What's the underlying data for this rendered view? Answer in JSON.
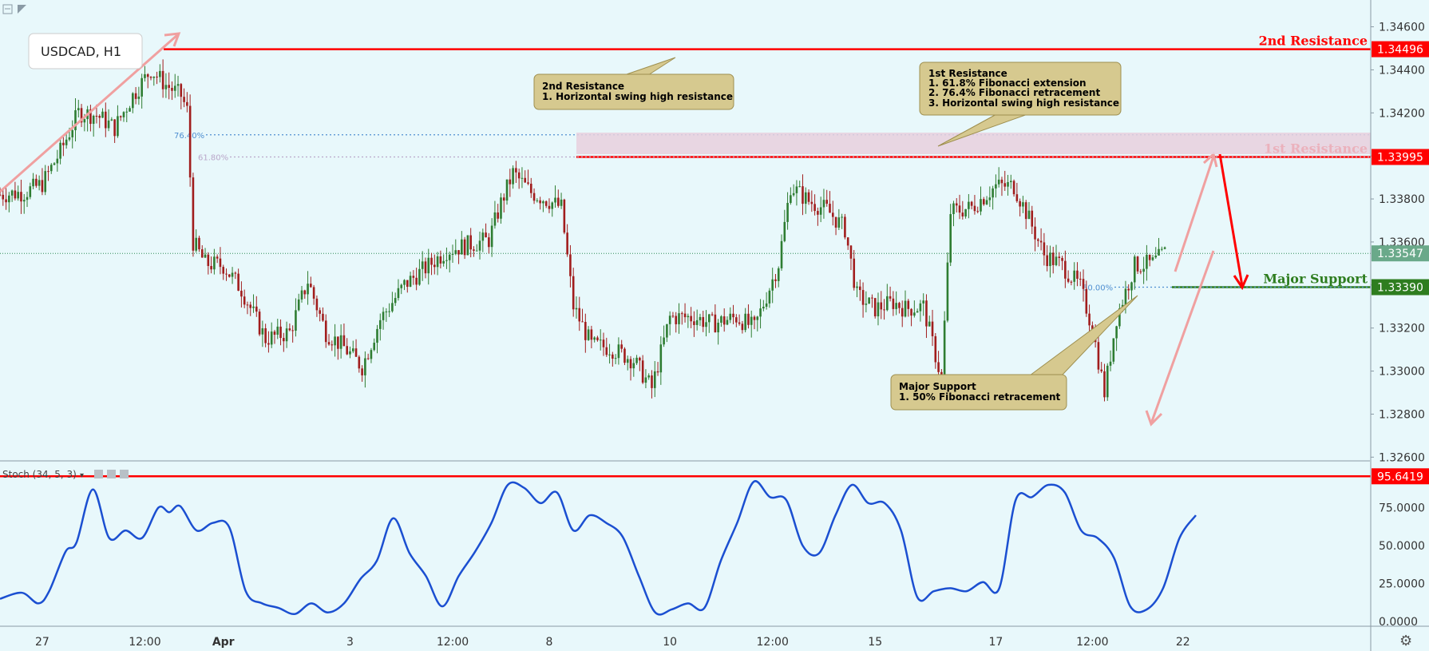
{
  "symbol_label": "USDCAD, H1",
  "indicator_label": "Stoch (34, 5, 3)",
  "colors": {
    "background": "#e8f8fb",
    "up_candle": "#2e7d32",
    "down_candle": "#a11d1d",
    "resistance": "#ff0000",
    "support": "#2e7d1f",
    "fib_line": "#4f8fd1",
    "stoch_line": "#1b4fd1",
    "arrow_light": "#f0a0a0",
    "callout_fill": "#d6c98f",
    "callout_border": "#9e8f4f"
  },
  "levels": [
    {
      "name": "2nd Resistance",
      "price": 1.34496,
      "tag": "1.34496",
      "color": "#ff0000"
    },
    {
      "name": "1st Resistance",
      "price": 1.33995,
      "tag": "1.33995",
      "color": "#ff0000"
    },
    {
      "name": "Major Support",
      "price": 1.3339,
      "tag": "1.33390",
      "color": "#2e7d1f"
    }
  ],
  "current_price": {
    "price": 1.33547,
    "tag": "1.33547"
  },
  "fib_labels": [
    {
      "label": "76.40%",
      "price": 1.34098
    },
    {
      "label": "61.80%",
      "price": 1.33995
    },
    {
      "label": "50.00%",
      "price": 1.3339
    }
  ],
  "callouts": {
    "second_resistance": [
      "2nd Resistance",
      "1. Horizontal swing high resistance"
    ],
    "first_resistance": [
      "1st Resistance",
      "1. 61.8% Fibonacci extension",
      "2. 76.4% Fibonacci retracement",
      "3. Horizontal swing high resistance"
    ],
    "major_support": [
      "Major Support",
      "1. 50% Fibonacci retracement"
    ]
  },
  "stoch_level": {
    "value": 95.6419,
    "tag": "95.6419"
  },
  "chart_data": [
    {
      "type": "candlestick",
      "title": "USDCAD, H1",
      "ylim": [
        1.3259,
        1.3468
      ],
      "y_ticks": [
        "1.34600",
        "1.34400",
        "1.34200",
        "1.34000",
        "1.33800",
        "1.33600",
        "1.33400",
        "1.33200",
        "1.33000",
        "1.32800",
        "1.32600"
      ],
      "y_tick_values": [
        1.346,
        1.344,
        1.342,
        1.34,
        1.338,
        1.336,
        1.334,
        1.332,
        1.33,
        1.328,
        1.326
      ],
      "x_ticks": [
        "27",
        "12:00",
        "Apr",
        "3",
        "12:00",
        "8",
        "10",
        "12:00",
        "15",
        "17",
        "12:00",
        "22"
      ],
      "x_tick_index": [
        14,
        48,
        74,
        116,
        150,
        182,
        222,
        256,
        290,
        330,
        362,
        392
      ],
      "anchor_closes": [
        [
          0,
          1.3382
        ],
        [
          8,
          1.3383
        ],
        [
          14,
          1.3387
        ],
        [
          20,
          1.3402
        ],
        [
          26,
          1.342
        ],
        [
          32,
          1.3419
        ],
        [
          38,
          1.3413
        ],
        [
          44,
          1.3428
        ],
        [
          50,
          1.344
        ],
        [
          55,
          1.3433
        ],
        [
          60,
          1.3428
        ],
        [
          62,
          1.3421
        ],
        [
          64,
          1.336
        ],
        [
          68,
          1.335
        ],
        [
          74,
          1.3349
        ],
        [
          80,
          1.3338
        ],
        [
          88,
          1.3315
        ],
        [
          96,
          1.3318
        ],
        [
          102,
          1.3342
        ],
        [
          108,
          1.3318
        ],
        [
          114,
          1.3311
        ],
        [
          120,
          1.3302
        ],
        [
          126,
          1.3324
        ],
        [
          134,
          1.334
        ],
        [
          142,
          1.3349
        ],
        [
          148,
          1.3356
        ],
        [
          156,
          1.3359
        ],
        [
          162,
          1.3361
        ],
        [
          166,
          1.3378
        ],
        [
          170,
          1.3392
        ],
        [
          176,
          1.3383
        ],
        [
          182,
          1.3379
        ],
        [
          186,
          1.3376
        ],
        [
          190,
          1.333
        ],
        [
          196,
          1.3312
        ],
        [
          202,
          1.3311
        ],
        [
          210,
          1.3305
        ],
        [
          216,
          1.3292
        ],
        [
          222,
          1.3325
        ],
        [
          230,
          1.3325
        ],
        [
          236,
          1.3322
        ],
        [
          244,
          1.3325
        ],
        [
          250,
          1.332
        ],
        [
          258,
          1.335
        ],
        [
          262,
          1.3386
        ],
        [
          268,
          1.3379
        ],
        [
          274,
          1.3375
        ],
        [
          280,
          1.3366
        ],
        [
          284,
          1.3335
        ],
        [
          290,
          1.3329
        ],
        [
          296,
          1.3332
        ],
        [
          300,
          1.3329
        ],
        [
          306,
          1.333
        ],
        [
          312,
          1.3296
        ],
        [
          315,
          1.3374
        ],
        [
          322,
          1.3376
        ],
        [
          330,
          1.3386
        ],
        [
          336,
          1.3386
        ],
        [
          340,
          1.3374
        ],
        [
          346,
          1.3354
        ],
        [
          352,
          1.3349
        ],
        [
          358,
          1.3339
        ],
        [
          362,
          1.332
        ],
        [
          366,
          1.329
        ],
        [
          370,
          1.3325
        ],
        [
          376,
          1.3349
        ],
        [
          382,
          1.335
        ],
        [
          386,
          1.3355
        ]
      ]
    },
    {
      "type": "line",
      "title": "Stoch (34, 5, 3)",
      "ylim": [
        -2,
        100
      ],
      "y_ticks": [
        "75.0000",
        "50.0000",
        "25.0000",
        "0.0000"
      ],
      "y_tick_values": [
        75,
        50,
        25,
        0
      ],
      "series": [
        {
          "points": [
            [
              0,
              15
            ],
            [
              8,
              19
            ],
            [
              14,
              12
            ],
            [
              18,
              20
            ],
            [
              24,
              46
            ],
            [
              28,
              52
            ],
            [
              34,
              87
            ],
            [
              40,
              55
            ],
            [
              46,
              60
            ],
            [
              52,
              55
            ],
            [
              58,
              75
            ],
            [
              62,
              72
            ],
            [
              66,
              76
            ],
            [
              72,
              60
            ],
            [
              78,
              65
            ],
            [
              84,
              62
            ],
            [
              90,
              20
            ],
            [
              96,
              12
            ],
            [
              102,
              9
            ],
            [
              108,
              5
            ],
            [
              114,
              12
            ],
            [
              120,
              6
            ],
            [
              126,
              12
            ],
            [
              132,
              28
            ],
            [
              138,
              40
            ],
            [
              144,
              68
            ],
            [
              150,
              45
            ],
            [
              156,
              30
            ],
            [
              162,
              10
            ],
            [
              168,
              30
            ],
            [
              174,
              46
            ],
            [
              180,
              65
            ],
            [
              186,
              90
            ],
            [
              192,
              88
            ],
            [
              198,
              78
            ],
            [
              204,
              85
            ],
            [
              210,
              60
            ],
            [
              216,
              70
            ],
            [
              222,
              65
            ],
            [
              228,
              56
            ],
            [
              234,
              30
            ],
            [
              240,
              6
            ],
            [
              246,
              8
            ],
            [
              252,
              12
            ],
            [
              258,
              9
            ],
            [
              264,
              40
            ],
            [
              270,
              65
            ],
            [
              276,
              92
            ],
            [
              282,
              82
            ],
            [
              288,
              80
            ],
            [
              294,
              50
            ],
            [
              300,
              45
            ],
            [
              306,
              70
            ],
            [
              312,
              90
            ],
            [
              318,
              78
            ],
            [
              324,
              78
            ],
            [
              330,
              60
            ],
            [
              336,
              16
            ],
            [
              342,
              20
            ],
            [
              348,
              22
            ],
            [
              354,
              20
            ],
            [
              360,
              26
            ],
            [
              366,
              22
            ],
            [
              372,
              80
            ],
            [
              378,
              82
            ],
            [
              384,
              90
            ],
            [
              390,
              85
            ],
            [
              396,
              60
            ],
            [
              402,
              55
            ],
            [
              408,
              42
            ],
            [
              414,
              10
            ],
            [
              420,
              8
            ],
            [
              426,
              22
            ],
            [
              432,
              55
            ],
            [
              438,
              70
            ]
          ]
        }
      ]
    }
  ]
}
